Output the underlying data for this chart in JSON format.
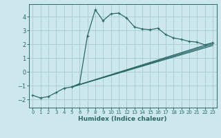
{
  "xlabel": "Humidex (Indice chaleur)",
  "bg_color": "#cce8ec",
  "grid_color": "#aacdd4",
  "line_color": "#2a6868",
  "xlim": [
    -0.5,
    23.5
  ],
  "ylim": [
    -2.6,
    4.9
  ],
  "yticks": [
    -2,
    -1,
    0,
    1,
    2,
    3,
    4
  ],
  "xticks": [
    0,
    1,
    2,
    3,
    4,
    5,
    6,
    7,
    8,
    9,
    10,
    11,
    12,
    13,
    14,
    15,
    16,
    17,
    18,
    19,
    20,
    21,
    22,
    23
  ],
  "line1_x": [
    0,
    1,
    2,
    3,
    4,
    5,
    6,
    7,
    8,
    9,
    10,
    11,
    12,
    13,
    14,
    15,
    16,
    17,
    18,
    19,
    20,
    21,
    22,
    23
  ],
  "line1_y": [
    -1.7,
    -1.9,
    -1.8,
    -1.5,
    -1.2,
    -1.1,
    -0.85,
    2.6,
    4.5,
    3.7,
    4.2,
    4.25,
    3.9,
    3.25,
    3.1,
    3.05,
    3.15,
    2.7,
    2.45,
    2.35,
    2.2,
    2.15,
    1.95,
    2.1
  ],
  "line2_x": [
    5,
    23
  ],
  "line2_y": [
    -1.1,
    2.1
  ],
  "line3_x": [
    5,
    23
  ],
  "line3_y": [
    -1.1,
    2.0
  ],
  "line4_x": [
    5,
    23
  ],
  "line4_y": [
    -1.1,
    1.9
  ]
}
